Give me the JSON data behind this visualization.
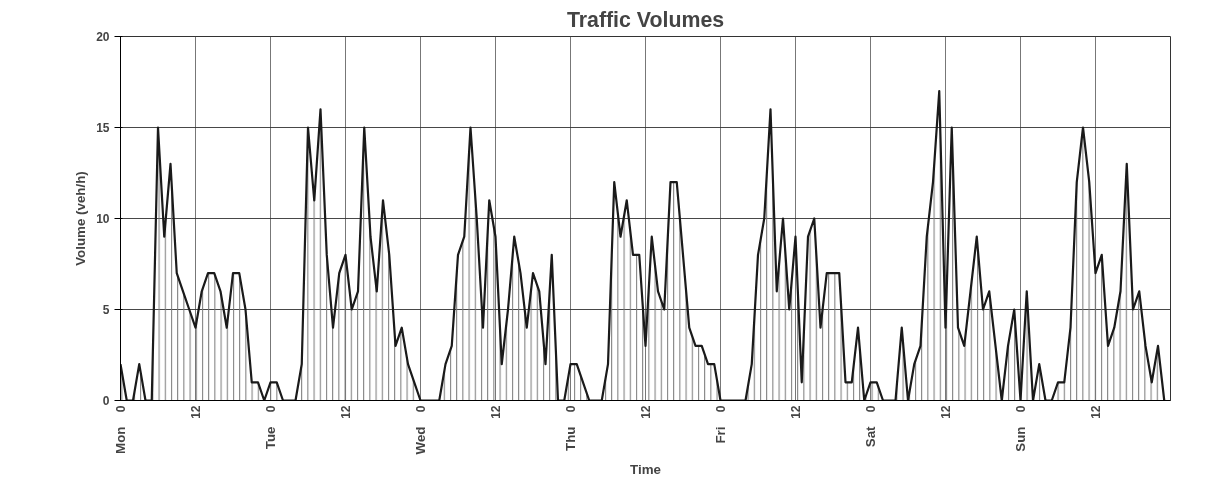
{
  "chart_data": {
    "type": "area",
    "title": "Traffic Volumes",
    "xlabel": "Time",
    "ylabel": "Volume (veh/h)",
    "categories": [
      "0",
      null,
      null,
      null,
      null,
      null,
      null,
      null,
      null,
      null,
      null,
      null,
      "12",
      null,
      null,
      null,
      null,
      null,
      null,
      null,
      null,
      null,
      null,
      null,
      "0",
      null,
      null,
      null,
      null,
      null,
      null,
      null,
      null,
      null,
      null,
      null,
      "12",
      null,
      null,
      null,
      null,
      null,
      null,
      null,
      null,
      null,
      null,
      null,
      "0",
      null,
      null,
      null,
      null,
      null,
      null,
      null,
      null,
      null,
      null,
      null,
      "12",
      null,
      null,
      null,
      null,
      null,
      null,
      null,
      null,
      null,
      null,
      null,
      "0",
      null,
      null,
      null,
      null,
      null,
      null,
      null,
      null,
      null,
      null,
      null,
      "12",
      null,
      null,
      null,
      null,
      null,
      null,
      null,
      null,
      null,
      null,
      null,
      "0",
      null,
      null,
      null,
      null,
      null,
      null,
      null,
      null,
      null,
      null,
      null,
      "12",
      null,
      null,
      null,
      null,
      null,
      null,
      null,
      null,
      null,
      null,
      null,
      "0",
      null,
      null,
      null,
      null,
      null,
      null,
      null,
      null,
      null,
      null,
      null,
      "12",
      null,
      null,
      null,
      null,
      null,
      null,
      null,
      null,
      null,
      null,
      null,
      "0",
      null,
      null,
      null,
      null,
      null,
      null,
      null,
      null,
      null,
      null,
      null,
      "12",
      null,
      null,
      null,
      null,
      null,
      null,
      null,
      null,
      null,
      null,
      null
    ],
    "series": [
      {
        "color": "#1a1a1a",
        "values": [
          2,
          0,
          0,
          2,
          0,
          0,
          15,
          9,
          13,
          7,
          6,
          5,
          4,
          6,
          7,
          7,
          6,
          4,
          7,
          7,
          5,
          1,
          1,
          0,
          1,
          1,
          0,
          0,
          0,
          2,
          15,
          11,
          16,
          8,
          4,
          7,
          8,
          5,
          6,
          15,
          9,
          6,
          11,
          8,
          3,
          4,
          2,
          1,
          0,
          0,
          0,
          0,
          2,
          3,
          8,
          9,
          15,
          10,
          4,
          11,
          9,
          2,
          5,
          9,
          7,
          4,
          7,
          6,
          2,
          8,
          0,
          0,
          2,
          2,
          1,
          0,
          0,
          0,
          2,
          12,
          9,
          11,
          8,
          8,
          3,
          9,
          6,
          5,
          12,
          12,
          8,
          4,
          3,
          3,
          2,
          2,
          0,
          0,
          0,
          0,
          0,
          2,
          8,
          10,
          16,
          6,
          10,
          5,
          9,
          1,
          9,
          10,
          4,
          7,
          7,
          7,
          1,
          1,
          4,
          0,
          1,
          1,
          0,
          0,
          0,
          4,
          0,
          2,
          3,
          9,
          12,
          17,
          4,
          15,
          4,
          3,
          6,
          9,
          5,
          6,
          3,
          0,
          3,
          5,
          0,
          6,
          0,
          2,
          0,
          0,
          1,
          1,
          4,
          12,
          15,
          12,
          7,
          8,
          3,
          4,
          6,
          13,
          5,
          6,
          3,
          1,
          3,
          0
        ]
      }
    ],
    "annotations": [
      "Mon",
      "Tue",
      "Wed",
      "Thu",
      "Fri",
      "Sat",
      "Sun"
    ],
    "ylim": [
      0,
      20
    ],
    "yticks": [
      0,
      5,
      10,
      15,
      20
    ],
    "grid": true
  }
}
